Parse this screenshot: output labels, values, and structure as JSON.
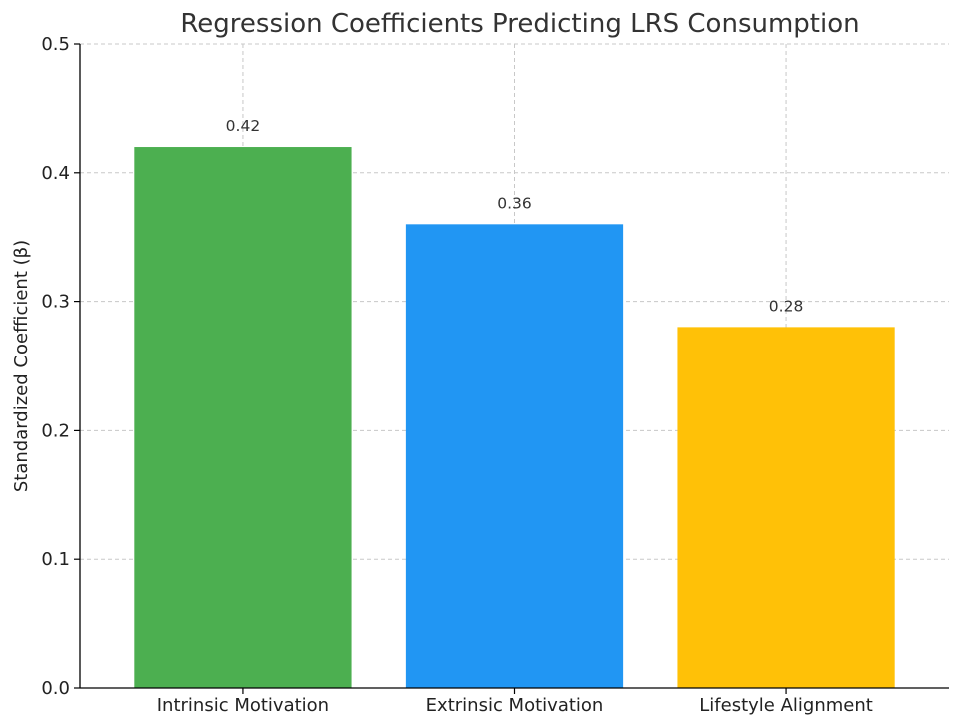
{
  "chart_data": {
    "type": "bar",
    "title": "Regression Coefficients Predicting LRS Consumption",
    "xlabel": "",
    "ylabel": "Standardized Coefficient (β)",
    "categories": [
      "Intrinsic Motivation",
      "Extrinsic Motivation",
      "Lifestyle Alignment"
    ],
    "values": [
      0.42,
      0.36,
      0.28
    ],
    "data_labels": [
      "0.42",
      "0.36",
      "0.28"
    ],
    "colors": [
      "#4caf50",
      "#2196f3",
      "#ffc107"
    ],
    "ylim": [
      0,
      0.5
    ],
    "yticks": [
      0.0,
      0.1,
      0.2,
      0.3,
      0.4,
      0.5
    ],
    "ytick_labels": [
      "0.0",
      "0.1",
      "0.2",
      "0.3",
      "0.4",
      "0.5"
    ],
    "grid": true,
    "legend": "none"
  }
}
